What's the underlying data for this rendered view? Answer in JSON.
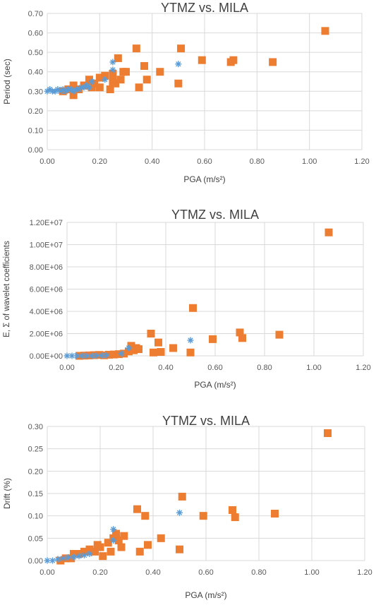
{
  "chart_data": [
    {
      "type": "scatter",
      "title": "YTMZ vs. MILA",
      "xlabel": "PGA (m/s²)",
      "ylabel": "Period (sec)",
      "xlim": [
        0,
        1.2
      ],
      "ylim": [
        0,
        0.7
      ],
      "xticks": [
        "0.00",
        "0.20",
        "0.40",
        "0.60",
        "0.80",
        "1.00",
        "1.20"
      ],
      "yticks": [
        "0.00",
        "0.10",
        "0.20",
        "0.30",
        "0.40",
        "0.50",
        "0.60",
        "0.70"
      ],
      "grid": true,
      "colors": {
        "orange": "#ED7D31",
        "blue": "#5B9BD5"
      },
      "series": [
        {
          "marker": "square",
          "color": "#ED7D31",
          "points": [
            [
              0.06,
              0.3
            ],
            [
              0.08,
              0.31
            ],
            [
              0.1,
              0.28
            ],
            [
              0.1,
              0.33
            ],
            [
              0.12,
              0.31
            ],
            [
              0.14,
              0.33
            ],
            [
              0.16,
              0.36
            ],
            [
              0.17,
              0.32
            ],
            [
              0.18,
              0.34
            ],
            [
              0.2,
              0.37
            ],
            [
              0.2,
              0.32
            ],
            [
              0.22,
              0.38
            ],
            [
              0.24,
              0.31
            ],
            [
              0.25,
              0.39
            ],
            [
              0.25,
              0.35
            ],
            [
              0.26,
              0.34
            ],
            [
              0.27,
              0.47
            ],
            [
              0.28,
              0.36
            ],
            [
              0.29,
              0.4
            ],
            [
              0.3,
              0.4
            ],
            [
              0.34,
              0.52
            ],
            [
              0.35,
              0.32
            ],
            [
              0.37,
              0.43
            ],
            [
              0.38,
              0.36
            ],
            [
              0.43,
              0.4
            ],
            [
              0.5,
              0.34
            ],
            [
              0.51,
              0.52
            ],
            [
              0.59,
              0.46
            ],
            [
              0.7,
              0.45
            ],
            [
              0.71,
              0.46
            ],
            [
              0.86,
              0.45
            ],
            [
              1.06,
              0.61
            ]
          ]
        },
        {
          "marker": "asterisk",
          "color": "#5B9BD5",
          "points": [
            [
              0.0,
              0.3
            ],
            [
              0.01,
              0.31
            ],
            [
              0.02,
              0.3
            ],
            [
              0.03,
              0.3
            ],
            [
              0.04,
              0.31
            ],
            [
              0.05,
              0.3
            ],
            [
              0.06,
              0.31
            ],
            [
              0.07,
              0.3
            ],
            [
              0.08,
              0.31
            ],
            [
              0.09,
              0.31
            ],
            [
              0.1,
              0.3
            ],
            [
              0.11,
              0.31
            ],
            [
              0.12,
              0.31
            ],
            [
              0.13,
              0.32
            ],
            [
              0.14,
              0.32
            ],
            [
              0.15,
              0.33
            ],
            [
              0.16,
              0.32
            ],
            [
              0.17,
              0.35
            ],
            [
              0.22,
              0.36
            ],
            [
              0.25,
              0.45
            ],
            [
              0.25,
              0.41
            ],
            [
              0.5,
              0.44
            ]
          ]
        }
      ]
    },
    {
      "type": "scatter",
      "title": "YTMZ vs. MILA",
      "xlabel": "PGA (m/s²)",
      "ylabel": "E, Σ of wavelet coefficients",
      "xlim": [
        0,
        1.2
      ],
      "ylim": [
        0,
        12000000
      ],
      "xticks": [
        "0.00",
        "0.20",
        "0.40",
        "0.60",
        "0.80",
        "1.00",
        "1.20"
      ],
      "yticks": [
        "0.00E+00",
        "2.00E+06",
        "4.00E+06",
        "6.00E+06",
        "8.00E+06",
        "1.00E+07",
        "1.20E+07"
      ],
      "grid": true,
      "series": [
        {
          "marker": "square",
          "color": "#ED7D31",
          "points": [
            [
              0.05,
              0
            ],
            [
              0.07,
              20000
            ],
            [
              0.09,
              40000
            ],
            [
              0.11,
              60000
            ],
            [
              0.13,
              80000
            ],
            [
              0.15,
              50000
            ],
            [
              0.17,
              100000
            ],
            [
              0.19,
              120000
            ],
            [
              0.21,
              150000
            ],
            [
              0.23,
              200000
            ],
            [
              0.25,
              400000
            ],
            [
              0.26,
              900000
            ],
            [
              0.27,
              500000
            ],
            [
              0.28,
              700000
            ],
            [
              0.29,
              600000
            ],
            [
              0.34,
              2000000
            ],
            [
              0.35,
              300000
            ],
            [
              0.37,
              1200000
            ],
            [
              0.38,
              350000
            ],
            [
              0.43,
              700000
            ],
            [
              0.5,
              300000
            ],
            [
              0.51,
              4300000
            ],
            [
              0.59,
              1500000
            ],
            [
              0.7,
              2100000
            ],
            [
              0.71,
              1600000
            ],
            [
              0.86,
              1900000
            ],
            [
              1.06,
              11100000
            ]
          ]
        },
        {
          "marker": "asterisk",
          "color": "#5B9BD5",
          "points": [
            [
              0.0,
              0
            ],
            [
              0.02,
              0
            ],
            [
              0.04,
              0
            ],
            [
              0.06,
              0
            ],
            [
              0.08,
              0
            ],
            [
              0.1,
              0
            ],
            [
              0.12,
              20000
            ],
            [
              0.14,
              30000
            ],
            [
              0.16,
              50000
            ],
            [
              0.22,
              200000
            ],
            [
              0.25,
              700000
            ],
            [
              0.5,
              1400000
            ]
          ]
        }
      ]
    },
    {
      "type": "scatter",
      "title": "YTMZ vs. MILA",
      "xlabel": "PGA (m/s²)",
      "ylabel": "Drift (%)",
      "xlim": [
        0,
        1.2
      ],
      "ylim": [
        0,
        0.3
      ],
      "xticks": [
        "0.00",
        "0.20",
        "0.40",
        "0.60",
        "0.80",
        "1.00",
        "1.20"
      ],
      "yticks": [
        "0.00",
        "0.05",
        "0.10",
        "0.15",
        "0.20",
        "0.25",
        "0.30"
      ],
      "grid": true,
      "series": [
        {
          "marker": "square",
          "color": "#ED7D31",
          "points": [
            [
              0.05,
              0.0
            ],
            [
              0.07,
              0.005
            ],
            [
              0.09,
              0.005
            ],
            [
              0.1,
              0.015
            ],
            [
              0.12,
              0.015
            ],
            [
              0.14,
              0.02
            ],
            [
              0.16,
              0.025
            ],
            [
              0.18,
              0.02
            ],
            [
              0.19,
              0.035
            ],
            [
              0.2,
              0.03
            ],
            [
              0.21,
              0.01
            ],
            [
              0.23,
              0.04
            ],
            [
              0.24,
              0.02
            ],
            [
              0.25,
              0.05
            ],
            [
              0.26,
              0.06
            ],
            [
              0.27,
              0.045
            ],
            [
              0.28,
              0.03
            ],
            [
              0.29,
              0.055
            ],
            [
              0.34,
              0.115
            ],
            [
              0.35,
              0.02
            ],
            [
              0.37,
              0.1
            ],
            [
              0.38,
              0.035
            ],
            [
              0.43,
              0.05
            ],
            [
              0.5,
              0.025
            ],
            [
              0.51,
              0.143
            ],
            [
              0.59,
              0.1
            ],
            [
              0.7,
              0.113
            ],
            [
              0.71,
              0.097
            ],
            [
              0.86,
              0.105
            ],
            [
              1.06,
              0.285
            ]
          ]
        },
        {
          "marker": "asterisk",
          "color": "#5B9BD5",
          "points": [
            [
              0.0,
              0.0
            ],
            [
              0.02,
              0.0
            ],
            [
              0.04,
              0.003
            ],
            [
              0.06,
              0.005
            ],
            [
              0.08,
              0.007
            ],
            [
              0.1,
              0.008
            ],
            [
              0.12,
              0.01
            ],
            [
              0.14,
              0.012
            ],
            [
              0.16,
              0.015
            ],
            [
              0.25,
              0.07
            ],
            [
              0.25,
              0.045
            ],
            [
              0.5,
              0.107
            ]
          ]
        }
      ]
    }
  ]
}
